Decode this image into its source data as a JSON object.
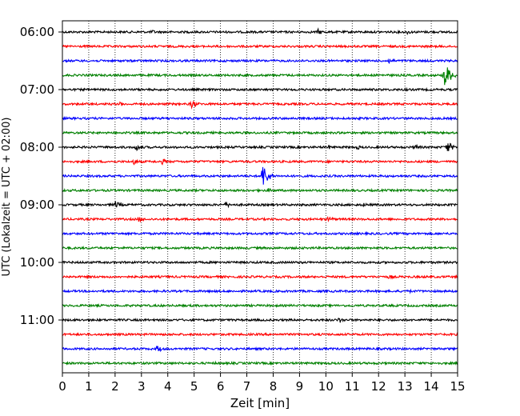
{
  "chart_data": {
    "type": "line",
    "xlabel": "Zeit  [min]",
    "ylabel": "UTC (Lokalzeit = UTC + 02:00)",
    "xlim": [
      0,
      15
    ],
    "x_ticks": [
      0,
      1,
      2,
      3,
      4,
      5,
      6,
      7,
      8,
      9,
      10,
      11,
      12,
      13,
      14,
      15
    ],
    "x_grid": "dotted",
    "y_tick_labels": [
      "06:00",
      "07:00",
      "08:00",
      "09:00",
      "10:00",
      "11:00"
    ],
    "y_tick_traces": [
      0,
      4,
      8,
      12,
      16,
      20
    ],
    "trace_interval_min": 15,
    "trace_colors": [
      "#000000",
      "#ff0000",
      "#0000ff",
      "#008000"
    ],
    "traces": [
      {
        "start": "06:00",
        "bursts": [
          {
            "t": 3.4,
            "amp": 3
          },
          {
            "t": 9.7,
            "amp": 4
          },
          {
            "t": 13.1,
            "amp": 3
          }
        ]
      },
      {
        "start": "06:15",
        "bursts": []
      },
      {
        "start": "06:30",
        "bursts": [
          {
            "t": 12.4,
            "amp": 4
          }
        ]
      },
      {
        "start": "06:45",
        "bursts": [
          {
            "t": 14.5,
            "amp": 18
          }
        ]
      },
      {
        "start": "07:00",
        "bursts": [
          {
            "t": 13.0,
            "amp": 2
          }
        ]
      },
      {
        "start": "07:15",
        "bursts": [
          {
            "t": 2.2,
            "amp": 3
          },
          {
            "t": 4.9,
            "amp": 6
          }
        ]
      },
      {
        "start": "07:30",
        "bursts": [
          {
            "t": 4.0,
            "amp": 2
          }
        ]
      },
      {
        "start": "07:45",
        "bursts": [
          {
            "t": 2.4,
            "amp": 2
          },
          {
            "t": 5.0,
            "amp": 2
          }
        ]
      },
      {
        "start": "08:00",
        "bursts": [
          {
            "t": 2.8,
            "amp": 5
          },
          {
            "t": 10.1,
            "amp": 3
          },
          {
            "t": 11.2,
            "amp": 3
          },
          {
            "t": 13.4,
            "amp": 4
          },
          {
            "t": 14.6,
            "amp": 8
          }
        ]
      },
      {
        "start": "08:15",
        "bursts": [
          {
            "t": 2.7,
            "amp": 4
          },
          {
            "t": 3.8,
            "amp": 4
          }
        ]
      },
      {
        "start": "08:30",
        "bursts": [
          {
            "t": 7.6,
            "amp": 16
          }
        ]
      },
      {
        "start": "08:45",
        "bursts": [
          {
            "t": 7.8,
            "amp": 3
          }
        ]
      },
      {
        "start": "09:00",
        "bursts": [
          {
            "t": 2.0,
            "amp": 5
          },
          {
            "t": 6.2,
            "amp": 4
          },
          {
            "t": 11.4,
            "amp": 3
          }
        ]
      },
      {
        "start": "09:15",
        "bursts": [
          {
            "t": 2.9,
            "amp": 4
          },
          {
            "t": 10.1,
            "amp": 4
          }
        ]
      },
      {
        "start": "09:30",
        "bursts": [
          {
            "t": 3.1,
            "amp": 2
          }
        ]
      },
      {
        "start": "09:45",
        "bursts": []
      },
      {
        "start": "10:00",
        "bursts": [
          {
            "t": 6.6,
            "amp": 2
          }
        ]
      },
      {
        "start": "10:15",
        "bursts": [
          {
            "t": 12.4,
            "amp": 3
          }
        ]
      },
      {
        "start": "10:30",
        "bursts": [
          {
            "t": 13.2,
            "amp": 2
          }
        ]
      },
      {
        "start": "10:45",
        "bursts": [
          {
            "t": 1.3,
            "amp": 2
          }
        ]
      },
      {
        "start": "11:00",
        "bursts": [
          {
            "t": 10.5,
            "amp": 4
          }
        ]
      },
      {
        "start": "11:15",
        "bursts": []
      },
      {
        "start": "11:30",
        "bursts": [
          {
            "t": 3.6,
            "amp": 5
          }
        ]
      },
      {
        "start": "11:45",
        "bursts": [
          {
            "t": 5.8,
            "amp": 2
          }
        ]
      }
    ]
  }
}
